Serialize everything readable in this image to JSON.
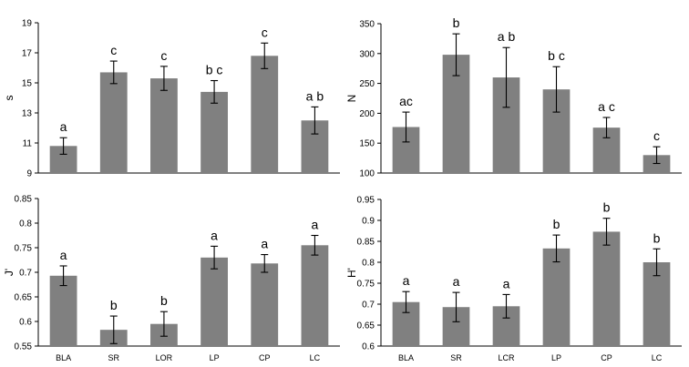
{
  "chart_data": [
    {
      "type": "bar",
      "ylabel": "s",
      "categories": [
        "BLA",
        "SR",
        "LOR",
        "LP",
        "CP",
        "LC"
      ],
      "values": [
        10.8,
        15.7,
        15.3,
        14.4,
        16.8,
        12.5
      ],
      "errors": [
        0.55,
        0.75,
        0.8,
        0.75,
        0.85,
        0.9
      ],
      "letters": [
        "a",
        "c",
        "c",
        "b c",
        "c",
        "a b"
      ],
      "ylim": [
        9,
        19
      ],
      "yticks": [
        "9",
        "11",
        "13",
        "15",
        "17",
        "19"
      ],
      "color": "#808080"
    },
    {
      "type": "bar",
      "ylabel": "N",
      "categories": [
        "BLA",
        "SR",
        "LCR",
        "LP",
        "CP",
        "LC"
      ],
      "values": [
        177,
        298,
        260,
        240,
        176,
        130
      ],
      "errors": [
        25,
        35,
        50,
        38,
        17,
        14
      ],
      "letters": [
        "ac",
        "b",
        "a b",
        "b c",
        "a c",
        "c"
      ],
      "ylim": [
        100,
        350
      ],
      "yticks": [
        "100",
        "150",
        "200",
        "250",
        "300",
        "350"
      ],
      "color": "#808080"
    },
    {
      "type": "bar",
      "ylabel": "J'",
      "categories": [
        "BLA",
        "SR",
        "LOR",
        "LP",
        "CP",
        "LC"
      ],
      "values": [
        0.693,
        0.583,
        0.595,
        0.73,
        0.718,
        0.755
      ],
      "errors": [
        0.02,
        0.028,
        0.025,
        0.023,
        0.018,
        0.02
      ],
      "letters": [
        "a",
        "b",
        "b",
        "a",
        "a",
        "a"
      ],
      "ylim": [
        0.55,
        0.85
      ],
      "yticks": [
        "0.55",
        "0.6",
        "0.65",
        "0.7",
        "0.75",
        "0.8",
        "0.85"
      ],
      "color": "#808080"
    },
    {
      "type": "bar",
      "ylabel": "H'",
      "categories": [
        "BLA",
        "SR",
        "LCR",
        "LP",
        "CP",
        "LC"
      ],
      "values": [
        0.705,
        0.693,
        0.695,
        0.833,
        0.873,
        0.8
      ],
      "errors": [
        0.025,
        0.035,
        0.028,
        0.032,
        0.032,
        0.032
      ],
      "letters": [
        "a",
        "a",
        "a",
        "b",
        "b",
        "b"
      ],
      "ylim": [
        0.6,
        0.95
      ],
      "yticks": [
        "0.6",
        "0.65",
        "0.7",
        "0.75",
        "0.8",
        "0.85",
        "0.9",
        "0.95"
      ],
      "color": "#808080"
    }
  ]
}
